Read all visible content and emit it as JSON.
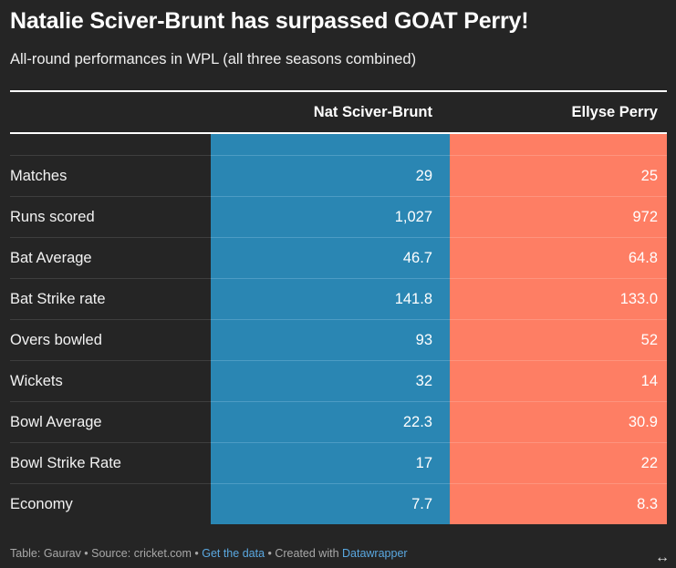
{
  "title": "Natalie Sciver-Brunt has surpassed GOAT Perry!",
  "subtitle": "All-round performances in WPL (all three seasons combined)",
  "chart_data": {
    "type": "table",
    "columns": [
      "",
      "Nat Sciver-Brunt",
      "Ellyse Perry"
    ],
    "column_colors": [
      "#2a86b3",
      "#fe7e64"
    ],
    "rows": [
      {
        "label": "Matches",
        "values": [
          "29",
          "25"
        ]
      },
      {
        "label": "Runs scored",
        "values": [
          "1,027",
          "972"
        ]
      },
      {
        "label": "Bat Average",
        "values": [
          "46.7",
          "64.8"
        ]
      },
      {
        "label": "Bat Strike rate",
        "values": [
          "141.8",
          "133.0"
        ]
      },
      {
        "label": "Overs bowled",
        "values": [
          "93",
          "52"
        ]
      },
      {
        "label": "Wickets",
        "values": [
          "32",
          "14"
        ]
      },
      {
        "label": "Bowl Average",
        "values": [
          "22.3",
          "30.9"
        ]
      },
      {
        "label": "Bowl Strike Rate",
        "values": [
          "17",
          "22"
        ]
      },
      {
        "label": "Economy",
        "values": [
          "7.7",
          "8.3"
        ]
      }
    ]
  },
  "footer": {
    "prefix": "Table: Gaurav • Source: cricket.com • ",
    "get_data": "Get the data",
    "mid": " • Created with ",
    "datawrapper": "Datawrapper"
  },
  "icons": {
    "expand": "expand-horizontal-icon"
  }
}
